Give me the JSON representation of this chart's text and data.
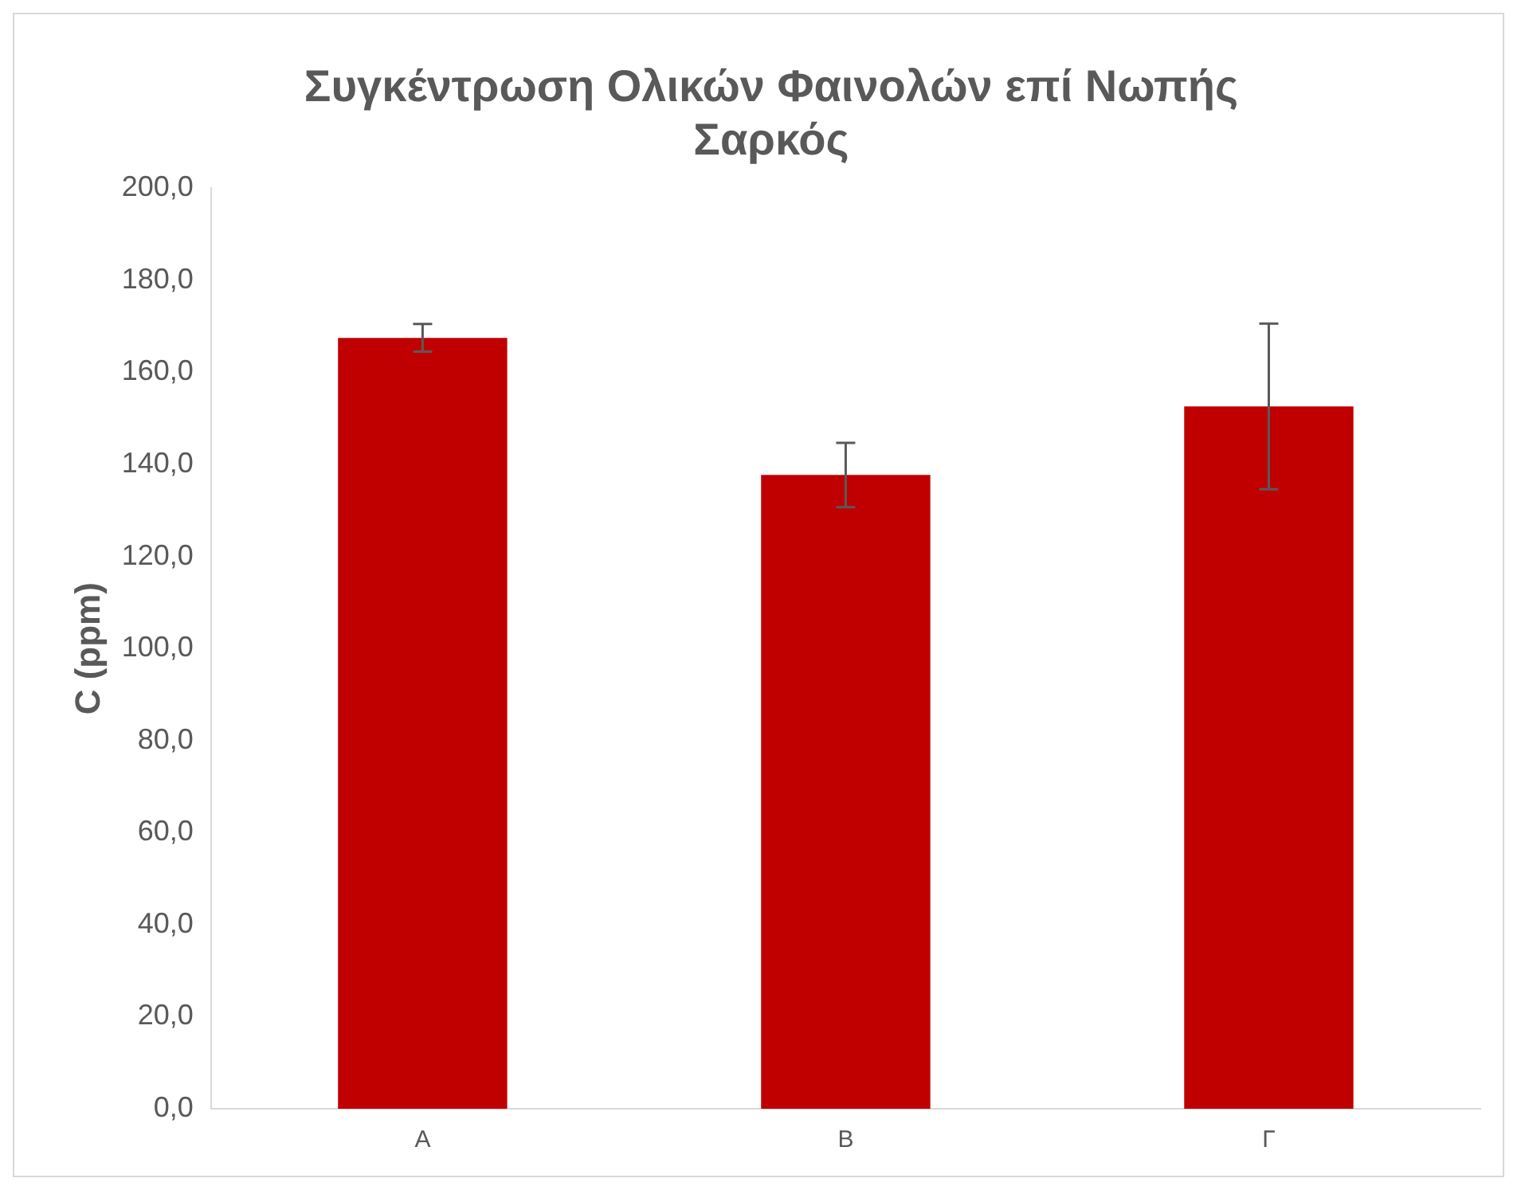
{
  "chart_data": {
    "type": "bar",
    "title": "Συγκέντρωση Ολικών Φαινολών επί Νωπής Σαρκός",
    "ylabel": "C (ppm)",
    "categories": [
      "Α",
      "Β",
      "Γ"
    ],
    "values": [
      167.5,
      137.7,
      152.6
    ],
    "errors": [
      3,
      7,
      18
    ],
    "color": "#c00000",
    "ylim": [
      0,
      200
    ],
    "yticks": [
      {
        "value": 0,
        "label": "0,0"
      },
      {
        "value": 20,
        "label": "20,0"
      },
      {
        "value": 40,
        "label": "40,0"
      },
      {
        "value": 60,
        "label": "60,0"
      },
      {
        "value": 80,
        "label": "80,0"
      },
      {
        "value": 100,
        "label": "100,0"
      },
      {
        "value": 120,
        "label": "120,0"
      },
      {
        "value": 140,
        "label": "140,0"
      },
      {
        "value": 160,
        "label": "160,0"
      },
      {
        "value": 180,
        "label": "180,0"
      },
      {
        "value": 200,
        "label": "200,0"
      }
    ],
    "grid": false,
    "legend": false
  }
}
